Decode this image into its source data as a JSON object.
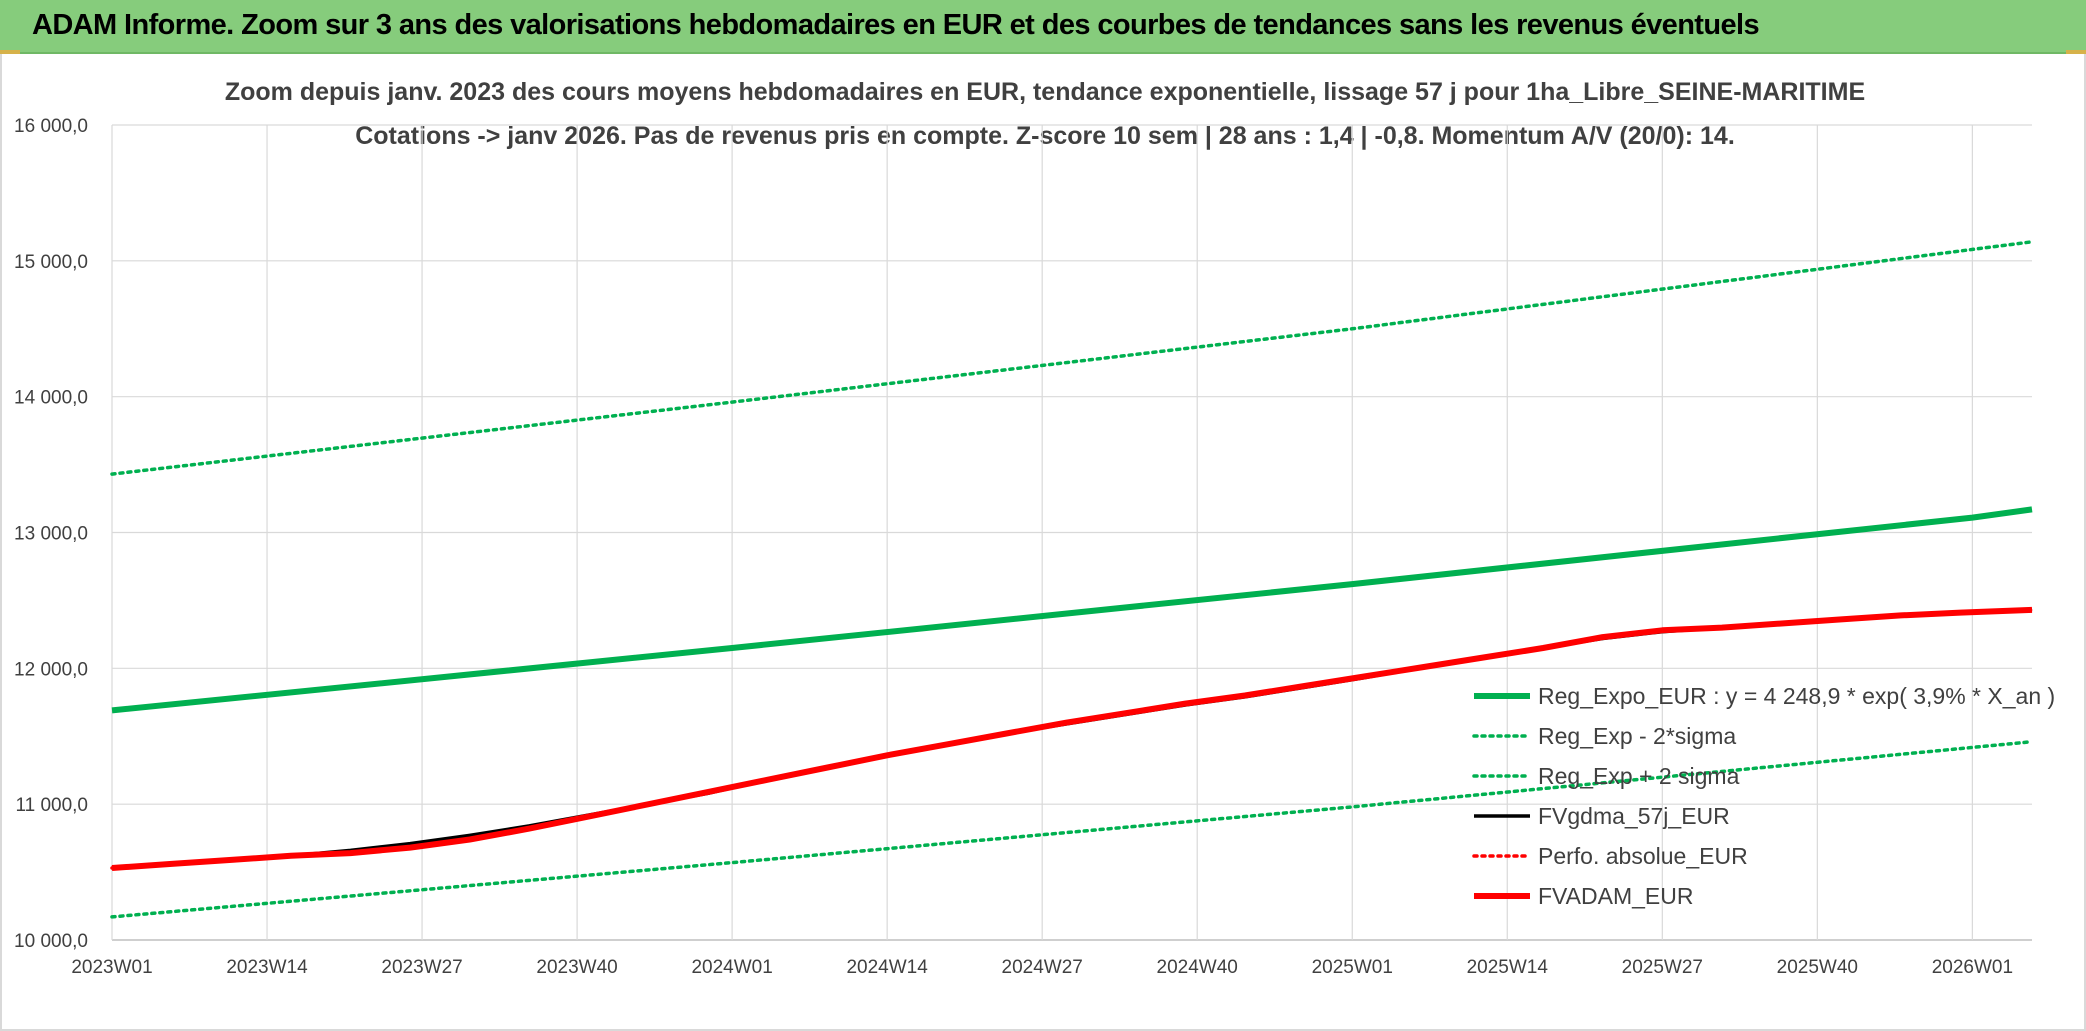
{
  "header": {
    "title": "ADAM Informe. Zoom sur 3 ans des valorisations hebdomadaires en EUR et des courbes de tendances sans les revenus éventuels"
  },
  "chart_data": {
    "type": "line",
    "title": "Zoom depuis janv. 2023 des cours moyens hebdomadaires en EUR, tendance exponentielle, lissage 57 j pour 1ha_Libre_SEINE-MARITIME",
    "subtitle": "Cotations -> janv 2026. Pas de revenus pris en compte. Z-score 10 sem | 28 ans : 1,4 | -0,8. Momentum A/V (20/0): 14.",
    "xlabel": "",
    "ylabel": "",
    "ylim": [
      10000,
      16000
    ],
    "y_ticks": [
      "10 000,0",
      "11 000,0",
      "12 000,0",
      "13 000,0",
      "14 000,0",
      "15 000,0",
      "16 000,0"
    ],
    "x_ticks": [
      "2023W01",
      "2023W14",
      "2023W27",
      "2023W40",
      "2024W01",
      "2024W14",
      "2024W27",
      "2024W40",
      "2025W01",
      "2025W14",
      "2025W27",
      "2025W40",
      "2026W01"
    ],
    "x_range_weeks": [
      0,
      161
    ],
    "grid": true,
    "legend_position": "right",
    "series": [
      {
        "name": "Reg_Expo_EUR : y = 4 248,9 * exp( 3,9% *  X_an )",
        "color": "#00b050",
        "style": "solid-thick",
        "points": [
          [
            0,
            11690
          ],
          [
            52,
            12150
          ],
          [
            104,
            12620
          ],
          [
            156,
            13110
          ],
          [
            161,
            13170
          ]
        ]
      },
      {
        "name": "Reg_Exp - 2*sigma",
        "color": "#00b050",
        "style": "dotted",
        "points": [
          [
            0,
            10170
          ],
          [
            52,
            10570
          ],
          [
            104,
            10980
          ],
          [
            161,
            11460
          ]
        ]
      },
      {
        "name": "Reg_Exp + 2 sigma",
        "color": "#00b050",
        "style": "dotted",
        "points": [
          [
            0,
            13430
          ],
          [
            52,
            13960
          ],
          [
            104,
            14500
          ],
          [
            161,
            15140
          ]
        ]
      },
      {
        "name": "FVgdma_57j_EUR",
        "color": "#000000",
        "style": "solid",
        "points": [
          [
            0,
            10530
          ],
          [
            5,
            10560
          ],
          [
            10,
            10590
          ],
          [
            15,
            10620
          ],
          [
            20,
            10660
          ],
          [
            25,
            10710
          ],
          [
            30,
            10770
          ],
          [
            35,
            10840
          ],
          [
            40,
            10920
          ],
          [
            45,
            11000
          ],
          [
            50,
            11080
          ],
          [
            55,
            11180
          ],
          [
            60,
            11270
          ],
          [
            65,
            11360
          ],
          [
            70,
            11440
          ],
          [
            75,
            11520
          ],
          [
            80,
            11590
          ],
          [
            85,
            11660
          ],
          [
            90,
            11730
          ],
          [
            95,
            11790
          ],
          [
            100,
            11860
          ],
          [
            105,
            11930
          ],
          [
            110,
            12010
          ],
          [
            115,
            12080
          ],
          [
            120,
            12150
          ],
          [
            125,
            12220
          ],
          [
            130,
            12270
          ],
          [
            135,
            12300
          ],
          [
            140,
            12330
          ],
          [
            145,
            12360
          ],
          [
            150,
            12390
          ],
          [
            155,
            12410
          ],
          [
            161,
            12430
          ]
        ]
      },
      {
        "name": "Perfo. absolue_EUR",
        "color": "#ff0000",
        "style": "dotted",
        "points": [
          [
            0,
            10530
          ],
          [
            5,
            10560
          ],
          [
            10,
            10590
          ],
          [
            15,
            10620
          ],
          [
            20,
            10640
          ],
          [
            25,
            10680
          ],
          [
            30,
            10740
          ],
          [
            35,
            10820
          ],
          [
            40,
            10910
          ],
          [
            45,
            11000
          ],
          [
            50,
            11090
          ],
          [
            55,
            11180
          ],
          [
            60,
            11270
          ],
          [
            65,
            11360
          ],
          [
            70,
            11440
          ],
          [
            75,
            11520
          ],
          [
            80,
            11600
          ],
          [
            85,
            11670
          ],
          [
            90,
            11740
          ],
          [
            95,
            11800
          ],
          [
            100,
            11870
          ],
          [
            105,
            11940
          ],
          [
            110,
            12010
          ],
          [
            115,
            12080
          ],
          [
            120,
            12150
          ],
          [
            125,
            12230
          ],
          [
            130,
            12280
          ],
          [
            135,
            12300
          ],
          [
            140,
            12330
          ],
          [
            145,
            12360
          ],
          [
            150,
            12390
          ],
          [
            155,
            12410
          ],
          [
            161,
            12430
          ]
        ]
      },
      {
        "name": "FVADAM_EUR",
        "color": "#ff0000",
        "style": "solid-thick",
        "points": [
          [
            0,
            10530
          ],
          [
            5,
            10560
          ],
          [
            10,
            10590
          ],
          [
            15,
            10620
          ],
          [
            20,
            10640
          ],
          [
            25,
            10680
          ],
          [
            30,
            10740
          ],
          [
            35,
            10820
          ],
          [
            40,
            10910
          ],
          [
            45,
            11000
          ],
          [
            50,
            11090
          ],
          [
            55,
            11180
          ],
          [
            60,
            11270
          ],
          [
            65,
            11360
          ],
          [
            70,
            11440
          ],
          [
            75,
            11520
          ],
          [
            80,
            11600
          ],
          [
            85,
            11670
          ],
          [
            90,
            11740
          ],
          [
            95,
            11800
          ],
          [
            100,
            11870
          ],
          [
            105,
            11940
          ],
          [
            110,
            12010
          ],
          [
            115,
            12080
          ],
          [
            120,
            12150
          ],
          [
            125,
            12230
          ],
          [
            130,
            12280
          ],
          [
            135,
            12300
          ],
          [
            140,
            12330
          ],
          [
            145,
            12360
          ],
          [
            150,
            12390
          ],
          [
            155,
            12410
          ],
          [
            161,
            12430
          ]
        ]
      }
    ]
  }
}
